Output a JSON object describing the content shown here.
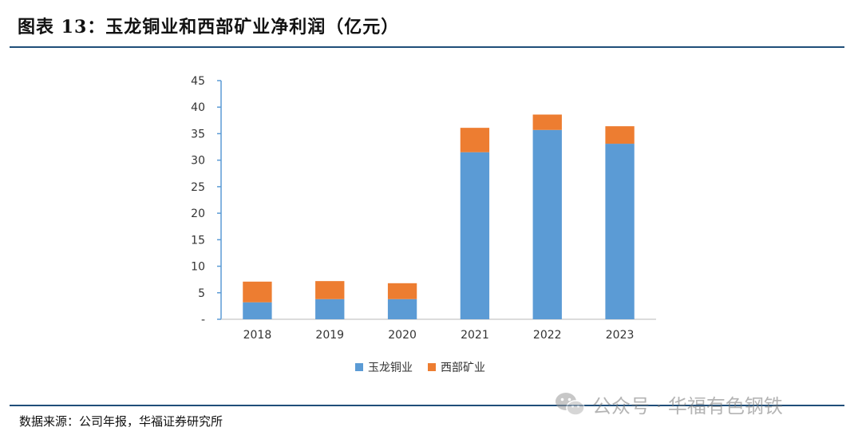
{
  "figure": {
    "title": "图表 13：玉龙铜业和西部矿业净利润（亿元）",
    "source": "数据来源：公司年报，华福证券研究所",
    "watermark": "公众号 · 华福有色钢铁",
    "watermark_icon": "wechat-icon"
  },
  "chart_data": {
    "type": "bar",
    "stacked": true,
    "title": "",
    "xlabel": "",
    "ylabel": "",
    "categories": [
      "2018",
      "2019",
      "2020",
      "2021",
      "2022",
      "2023"
    ],
    "series": [
      {
        "name": "玉龙铜业",
        "color": "#5b9bd5",
        "values": [
          3.2,
          3.8,
          3.8,
          31.5,
          35.7,
          33.1
        ]
      },
      {
        "name": "西部矿业",
        "color": "#ed7d31",
        "values": [
          3.9,
          3.4,
          3.0,
          4.6,
          2.9,
          3.3
        ]
      }
    ],
    "ylim": [
      0,
      45
    ],
    "yticks": [
      0,
      5,
      10,
      15,
      20,
      25,
      30,
      35,
      40,
      45
    ],
    "ytick_labels": [
      "-",
      "5",
      "10",
      "15",
      "20",
      "25",
      "30",
      "35",
      "40",
      "45"
    ],
    "grid": false,
    "legend": "bottom-center"
  }
}
